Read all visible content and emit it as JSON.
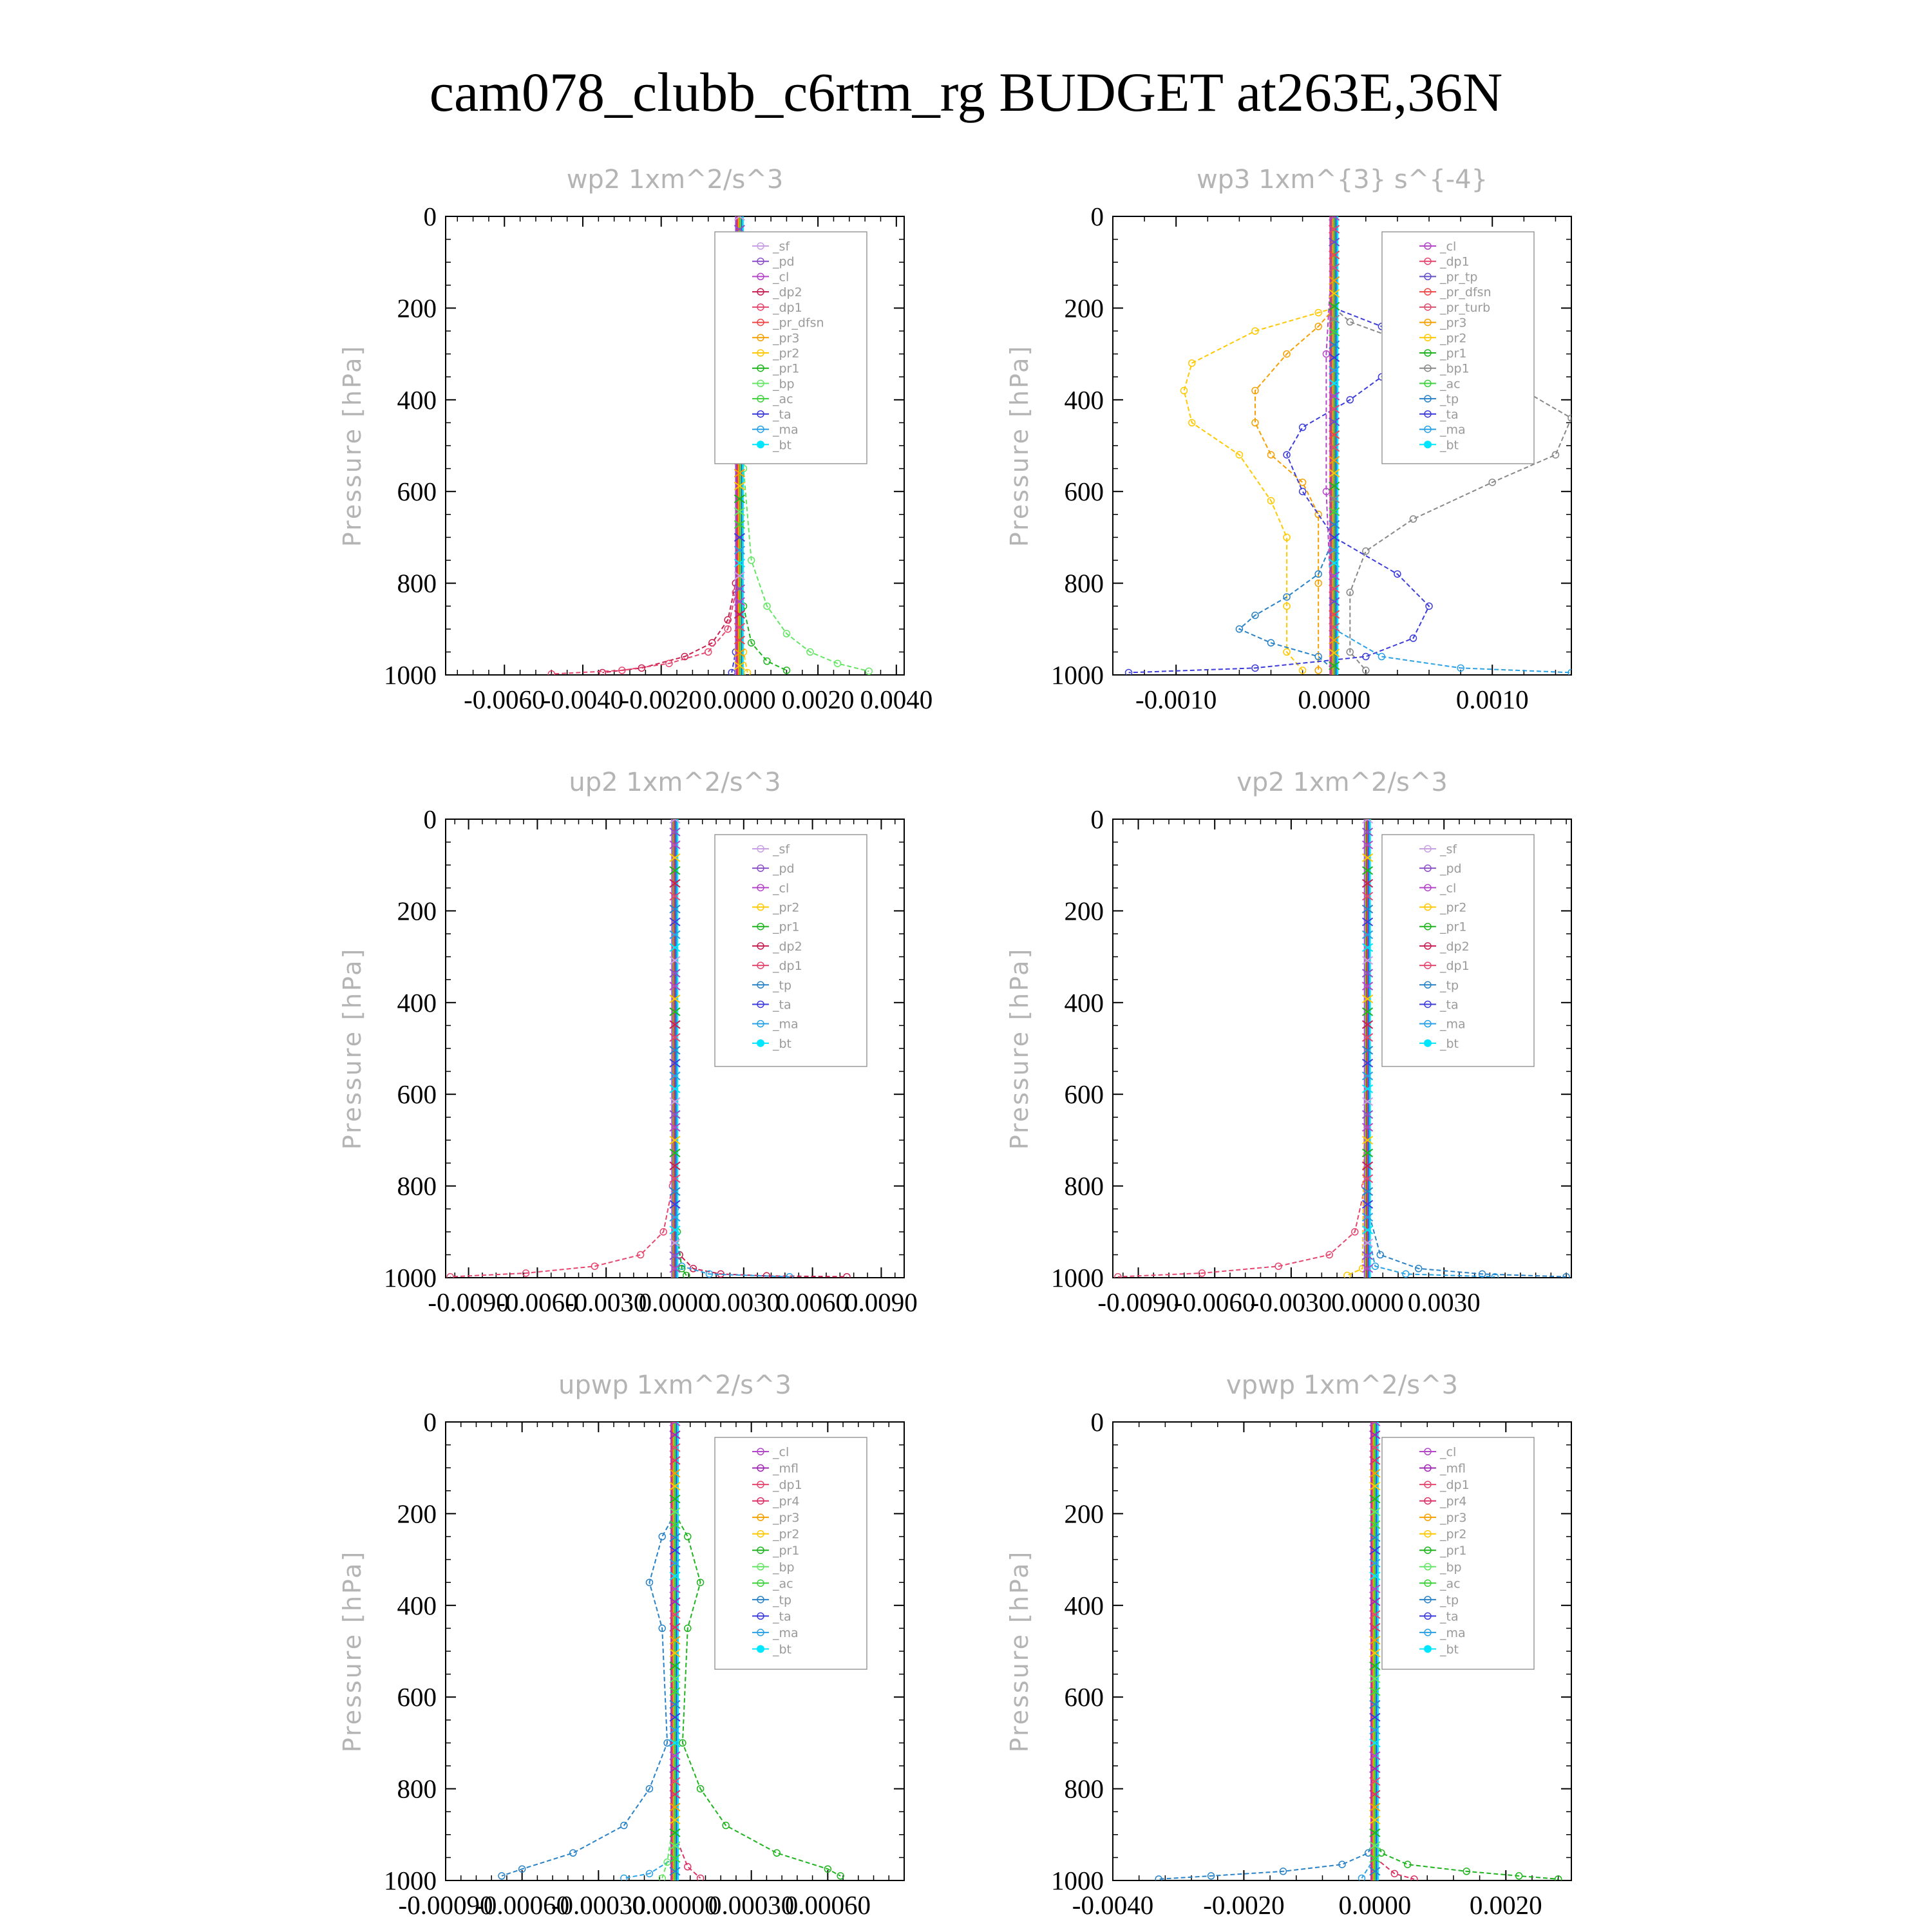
{
  "title": "cam078_clubb_c6rtm_rg  BUDGET at263E,36N",
  "colors": {
    "sf": "#c8a0e6",
    "pd": "#8c50c8",
    "cl": "#b446c8",
    "dp2": "#c81e50",
    "dp1": "#e6466e",
    "pr_dfsn": "#f04646",
    "pr3": "#f5a000",
    "pr2": "#ffc800",
    "pr1": "#1eb41e",
    "bp": "#64e664",
    "ac": "#3cd23c",
    "tp": "#2882c8",
    "ta": "#3c3cdc",
    "ma": "#28a0e6",
    "bt": "#00e6ff",
    "mfl": "#a028b4",
    "pr4": "#dc3264",
    "pr_tp": "#6450c8",
    "pr_turb": "#dc506e"
  },
  "chart_data": [
    {
      "type": "line",
      "title": "wp2   1xm^2/s^3",
      "ylabel": "Pressure [hPa]",
      "xlim": [
        -0.0075,
        0.0042
      ],
      "ylim": [
        1000,
        0
      ],
      "xticks": [
        "-0.0060",
        "-0.0040",
        "-0.0020",
        "0.0000",
        "0.0020",
        "0.0040"
      ],
      "yticks": [
        "0",
        "200",
        "400",
        "600",
        "800",
        "1000"
      ],
      "legend": [
        "_sf",
        "_pd",
        "_cl",
        "_dp2",
        "_dp1",
        "_pr_dfsn",
        "_pr3",
        "_pr2",
        "_pr1",
        "_bp",
        "_ac",
        "_ta",
        "_ma",
        "_bt"
      ],
      "legend_position": "top-right",
      "series": [
        {
          "name": "_dp2",
          "x": [
            0,
            0,
            -0.0001,
            -0.0003,
            -0.0007,
            -0.0014,
            -0.0025,
            -0.0035
          ],
          "y": [
            0,
            700,
            800,
            880,
            930,
            960,
            985,
            995
          ]
        },
        {
          "name": "_dp1",
          "x": [
            0,
            0,
            -0.0001,
            -0.0003,
            -0.0008,
            -0.0018,
            -0.003,
            -0.0048
          ],
          "y": [
            0,
            700,
            820,
            900,
            950,
            975,
            990,
            998
          ]
        },
        {
          "name": "_bp",
          "x": [
            0,
            0.0001,
            0.0003,
            0.0007,
            0.0012,
            0.0018,
            0.0025,
            0.0033
          ],
          "y": [
            0,
            550,
            750,
            850,
            910,
            950,
            975,
            992
          ]
        },
        {
          "name": "_pr1",
          "x": [
            0,
            0,
            0.0001,
            0.0003,
            0.0007,
            0.0012
          ],
          "y": [
            0,
            700,
            850,
            930,
            970,
            990
          ]
        },
        {
          "name": "_pr2",
          "x": [
            0,
            0,
            0.0001,
            0.0002
          ],
          "y": [
            0,
            800,
            950,
            995
          ]
        },
        {
          "name": "_ta",
          "x": [
            0,
            0,
            -0.0001,
            -0.0002
          ],
          "y": [
            0,
            800,
            950,
            995
          ]
        }
      ]
    },
    {
      "type": "line",
      "title": "wp3   1xm^{3} s^{-4}",
      "ylabel": "Pressure [hPa]",
      "xlim": [
        -0.0014,
        0.0015
      ],
      "ylim": [
        1000,
        0
      ],
      "xticks": [
        "-0.0010",
        "0.0000",
        "0.0010"
      ],
      "yticks": [
        "0",
        "200",
        "400",
        "600",
        "800",
        "1000"
      ],
      "legend": [
        "_cl",
        "_dp1",
        "_pr_tp",
        "_pr_dfsn",
        "_pr_turb",
        "_pr3",
        "_pr2",
        "_pr1",
        "_bp1",
        "_ac",
        "_tp",
        "_ta",
        "_ma",
        "_bt"
      ],
      "legend_position": "top-right",
      "series": [
        {
          "name": "_pr2",
          "x": [
            0,
            -0.0001,
            -0.0005,
            -0.0009,
            -0.00095,
            -0.0009,
            -0.0006,
            -0.0004,
            -0.0003,
            -0.0003,
            -0.0003,
            -0.0002
          ],
          "y": [
            200,
            210,
            250,
            320,
            380,
            450,
            520,
            620,
            700,
            850,
            950,
            990
          ]
        },
        {
          "name": "_pr3",
          "x": [
            0,
            -0.0001,
            -0.0003,
            -0.0005,
            -0.0005,
            -0.0004,
            -0.0002,
            -0.0001,
            -0.0001,
            -0.0001
          ],
          "y": [
            200,
            240,
            300,
            380,
            450,
            520,
            580,
            650,
            800,
            990
          ]
        },
        {
          "name": "_bp1",
          "x": [
            0,
            0.0001,
            0.0005,
            0.0011,
            0.0015,
            0.0014,
            0.001,
            0.0005,
            0.0002,
            0.0001,
            0.0001,
            0.0002
          ],
          "y": [
            200,
            230,
            280,
            360,
            440,
            520,
            580,
            660,
            730,
            820,
            950,
            990
          ]
        },
        {
          "name": "_ta",
          "x": [
            0,
            0.0003,
            0.0004,
            0.0003,
            0.0001,
            -0.0002,
            -0.0003,
            -0.0002,
            0,
            0.0004,
            0.0006,
            0.0005,
            0.0002,
            -0.0005,
            -0.0013
          ],
          "y": [
            200,
            240,
            290,
            350,
            400,
            460,
            520,
            600,
            700,
            780,
            850,
            920,
            960,
            985,
            995
          ]
        },
        {
          "name": "_tp",
          "x": [
            0,
            0,
            -0.0001,
            -0.0003,
            -0.0005,
            -0.0006,
            -0.0004,
            -0.0001,
            0
          ],
          "y": [
            300,
            700,
            780,
            830,
            870,
            900,
            930,
            960,
            990
          ]
        },
        {
          "name": "_ma",
          "x": [
            0,
            0,
            0.0003,
            0.0008,
            0.0015
          ],
          "y": [
            0,
            900,
            960,
            985,
            995
          ]
        },
        {
          "name": "_cl",
          "x": [
            0,
            -5e-05,
            -5e-05,
            0
          ],
          "y": [
            0,
            300,
            600,
            990
          ]
        }
      ]
    },
    {
      "type": "line",
      "title": "up2   1xm^2/s^3",
      "ylabel": "Pressure [hPa]",
      "xlim": [
        -0.01,
        0.01
      ],
      "ylim": [
        1000,
        0
      ],
      "xticks": [
        "-0.0090",
        "-0.0060",
        "-0.0030",
        "0.0000",
        "0.0030",
        "0.0060",
        "0.0090"
      ],
      "yticks": [
        "0",
        "200",
        "400",
        "600",
        "800",
        "1000"
      ],
      "legend": [
        "_sf",
        "_pd",
        "_cl",
        "_pr2",
        "_pr1",
        "_dp2",
        "_dp1",
        "_tp",
        "_ta",
        "_ma",
        "_bt"
      ],
      "legend_position": "top-right",
      "series": [
        {
          "name": "_dp1",
          "x": [
            0,
            -0.0001,
            -0.0005,
            -0.0015,
            -0.0035,
            -0.0065,
            -0.0098
          ],
          "y": [
            0,
            800,
            900,
            950,
            975,
            990,
            998
          ]
        },
        {
          "name": "_dp2",
          "x": [
            0,
            0,
            0.0002,
            0.0008,
            0.002,
            0.004,
            0.0075
          ],
          "y": [
            0,
            850,
            950,
            980,
            992,
            996,
            998
          ]
        },
        {
          "name": "_ma",
          "x": [
            0,
            0,
            0.0003,
            0.0015,
            0.005
          ],
          "y": [
            0,
            900,
            975,
            992,
            998
          ]
        },
        {
          "name": "_pr1",
          "x": [
            0,
            0.0001,
            0.0003,
            0.0005
          ],
          "y": [
            0,
            900,
            980,
            995
          ]
        }
      ]
    },
    {
      "type": "line",
      "title": "vp2   1xm^2/s^3",
      "ylabel": "Pressure [hPa]",
      "xlim": [
        -0.01,
        0.008
      ],
      "ylim": [
        1000,
        0
      ],
      "xticks": [
        "-0.0090",
        "-0.0060",
        "-0.0030",
        "0.0000",
        "0.0030"
      ],
      "yticks": [
        "0",
        "200",
        "400",
        "600",
        "800",
        "1000"
      ],
      "legend": [
        "_sf",
        "_pd",
        "_cl",
        "_pr2",
        "_pr1",
        "_dp2",
        "_dp1",
        "_tp",
        "_ta",
        "_ma",
        "_bt"
      ],
      "legend_position": "top-right",
      "series": [
        {
          "name": "_dp1",
          "x": [
            0,
            -0.0001,
            -0.0005,
            -0.0015,
            -0.0035,
            -0.0065,
            -0.0098
          ],
          "y": [
            0,
            800,
            900,
            950,
            975,
            990,
            998
          ]
        },
        {
          "name": "_tp",
          "x": [
            0,
            0,
            0.0005,
            0.002,
            0.0045,
            0.0078
          ],
          "y": [
            0,
            850,
            950,
            980,
            992,
            998
          ]
        },
        {
          "name": "_ma",
          "x": [
            0,
            0,
            0.0003,
            0.0015,
            0.005
          ],
          "y": [
            0,
            900,
            975,
            992,
            998
          ]
        },
        {
          "name": "_pr2",
          "x": [
            0,
            -0.0002,
            -0.0008
          ],
          "y": [
            0,
            980,
            995
          ]
        }
      ]
    },
    {
      "type": "line",
      "title": "upwp   1xm^2/s^3",
      "ylabel": "Pressure [hPa]",
      "xlim": [
        -0.0009,
        0.0009
      ],
      "ylim": [
        1000,
        0
      ],
      "xticks": [
        "-0.00090",
        "-0.00060",
        "-0.00030",
        "0.00000",
        "0.00030",
        "0.00060"
      ],
      "yticks": [
        "0",
        "200",
        "400",
        "600",
        "800",
        "1000"
      ],
      "legend": [
        "_cl",
        "_mfl",
        "_dp1",
        "_pr4",
        "_pr3",
        "_pr2",
        "_pr1",
        "_bp",
        "_ac",
        "_tp",
        "_ta",
        "_ma",
        "_bt"
      ],
      "legend_position": "top-right",
      "series": [
        {
          "name": "_tp",
          "x": [
            0,
            -5e-05,
            -0.0001,
            -5e-05,
            -3e-05,
            -0.0001,
            -0.0002,
            -0.0004,
            -0.0006,
            -0.00068
          ],
          "y": [
            200,
            250,
            350,
            450,
            700,
            800,
            880,
            940,
            975,
            990
          ]
        },
        {
          "name": "_pr1",
          "x": [
            0,
            5e-05,
            0.0001,
            5e-05,
            3e-05,
            0.0001,
            0.0002,
            0.0004,
            0.0006,
            0.00065
          ],
          "y": [
            200,
            250,
            350,
            450,
            700,
            800,
            880,
            940,
            975,
            990
          ]
        },
        {
          "name": "_ma",
          "x": [
            0,
            -0.0001,
            -0.0002
          ],
          "y": [
            950,
            985,
            995
          ]
        },
        {
          "name": "_pr4",
          "x": [
            0,
            5e-05,
            0.0001
          ],
          "y": [
            900,
            970,
            995
          ]
        },
        {
          "name": "_bp",
          "x": [
            0,
            -3e-05,
            -5e-05
          ],
          "y": [
            850,
            960,
            995
          ]
        }
      ]
    },
    {
      "type": "line",
      "title": "vpwp   1xm^2/s^3",
      "ylabel": "Pressure [hPa]",
      "xlim": [
        -0.004,
        0.003
      ],
      "ylim": [
        1000,
        0
      ],
      "xticks": [
        "-0.0040",
        "-0.0020",
        "0.0000",
        "0.0020"
      ],
      "yticks": [
        "0",
        "200",
        "400",
        "600",
        "800",
        "1000"
      ],
      "legend": [
        "_cl",
        "_mfl",
        "_dp1",
        "_pr4",
        "_pr3",
        "_pr2",
        "_pr1",
        "_bp",
        "_ac",
        "_tp",
        "_ta",
        "_ma",
        "_bt"
      ],
      "legend_position": "top-right",
      "series": [
        {
          "name": "_tp",
          "x": [
            0,
            -0.0001,
            -0.0005,
            -0.0014,
            -0.0025,
            -0.0033
          ],
          "y": [
            900,
            940,
            965,
            980,
            990,
            997
          ]
        },
        {
          "name": "_pr1",
          "x": [
            0,
            0.0001,
            0.0005,
            0.0014,
            0.0022,
            0.0028
          ],
          "y": [
            900,
            940,
            965,
            980,
            990,
            997
          ]
        },
        {
          "name": "_pr4",
          "x": [
            0,
            0.0003,
            0.0006
          ],
          "y": [
            950,
            985,
            997
          ]
        },
        {
          "name": "_ma",
          "x": [
            0,
            -0.0002
          ],
          "y": [
            950,
            995
          ]
        }
      ]
    }
  ]
}
